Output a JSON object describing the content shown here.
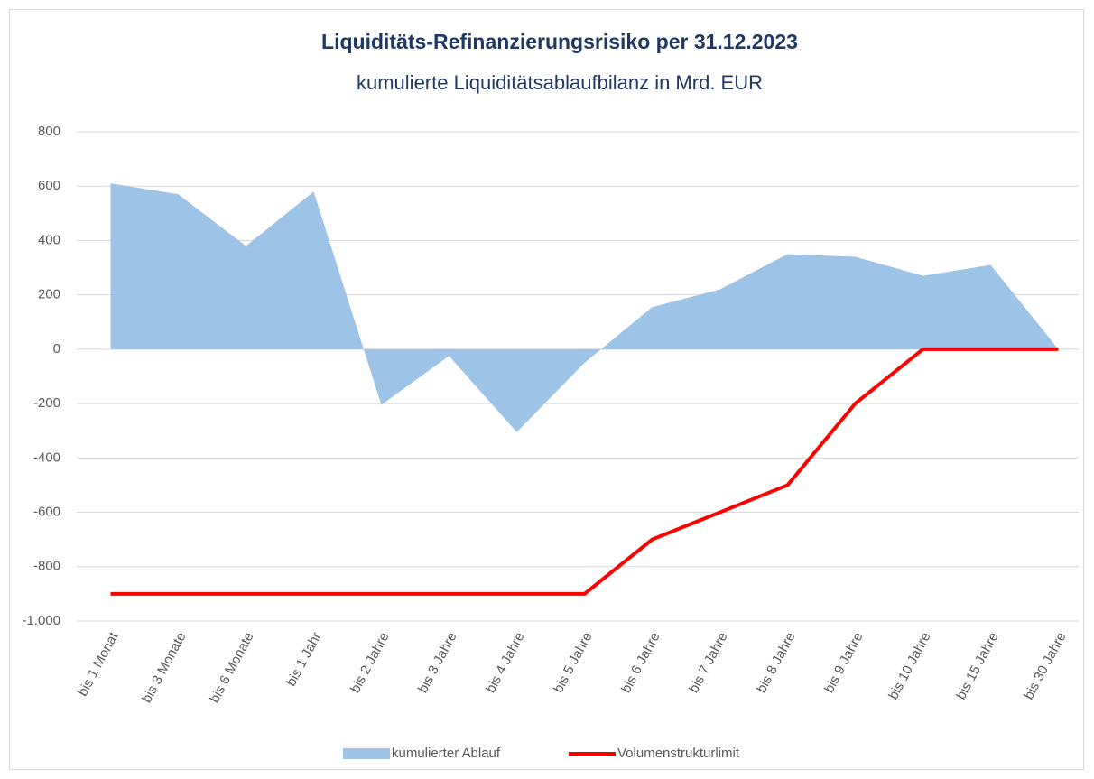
{
  "chart_data": {
    "type": "area_line",
    "title": "Liquiditäts-Refinanzierungsrisiko per 31.12.2023",
    "subtitle": "kumulierte Liquiditätsablaufbilanz in Mrd. EUR",
    "categories": [
      "bis 1 Monat",
      "bis 3 Monate",
      "bis 6 Monate",
      "bis 1 Jahr",
      "bis 2 Jahre",
      "bis 3 Jahre",
      "bis 4 Jahre",
      "bis 5 Jahre",
      "bis 6 Jahre",
      "bis 7 Jahre",
      "bis 8 Jahre",
      "bis 9 Jahre",
      "bis 10 Jahre",
      "bis 15 Jahre",
      "bis 30 Jahre"
    ],
    "series": [
      {
        "name": "kumulierter Ablauf",
        "type": "area",
        "color": "#9dc3e6",
        "values": [
          610,
          570,
          380,
          580,
          -205,
          -25,
          -305,
          -50,
          155,
          220,
          350,
          340,
          270,
          310,
          0
        ]
      },
      {
        "name": "Volumenstrukturlimit",
        "type": "line",
        "color": "#ff0000",
        "values": [
          -900,
          -900,
          -900,
          -900,
          -900,
          -900,
          -900,
          -900,
          -700,
          -600,
          -500,
          -200,
          0,
          0,
          0
        ]
      }
    ],
    "ylim": [
      -1000,
      800
    ],
    "yticks": [
      {
        "value": -1000,
        "label": "-1.000"
      },
      -800,
      -600,
      -400,
      -200,
      0,
      200,
      400,
      600,
      800
    ],
    "grid": true,
    "legend": "bottom"
  }
}
